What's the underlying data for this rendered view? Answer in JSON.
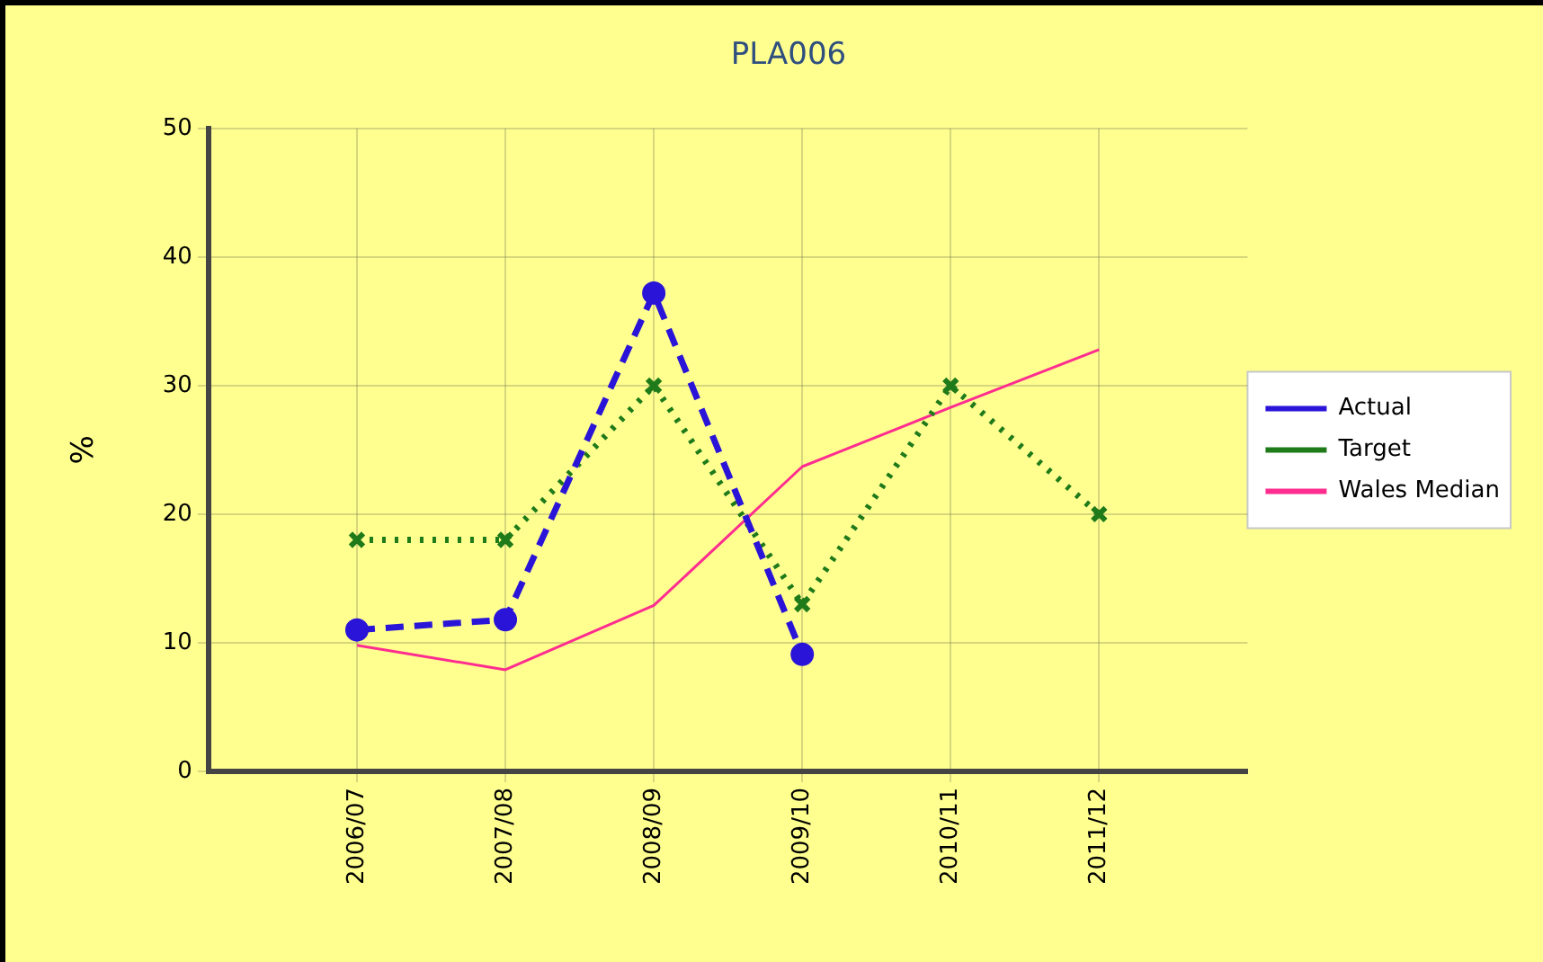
{
  "chart_data": {
    "type": "line",
    "title": "PLA006",
    "ylabel": "%",
    "categories": [
      "2006/07",
      "2007/08",
      "2008/09",
      "2009/10",
      "2010/11",
      "2011/12"
    ],
    "series": [
      {
        "name": "Actual",
        "color": "#2a14d8",
        "values": [
          11,
          11.8,
          37.2,
          9.1,
          null,
          null
        ],
        "line_style": "dashed",
        "marker": "circle"
      },
      {
        "name": "Target",
        "color": "#1f7a1a",
        "values": [
          18,
          18,
          30,
          13,
          30,
          20
        ],
        "line_style": "dotted",
        "marker": "cross"
      },
      {
        "name": "Wales Median",
        "color": "#ff2d8f",
        "values": [
          9.8,
          7.9,
          12.9,
          23.7,
          28.3,
          32.8
        ],
        "line_style": "solid",
        "marker": "none"
      }
    ],
    "ylim": [
      0,
      50
    ],
    "yticks": [
      0,
      10,
      20,
      30,
      40,
      50
    ],
    "grid": true,
    "legend": "right"
  }
}
